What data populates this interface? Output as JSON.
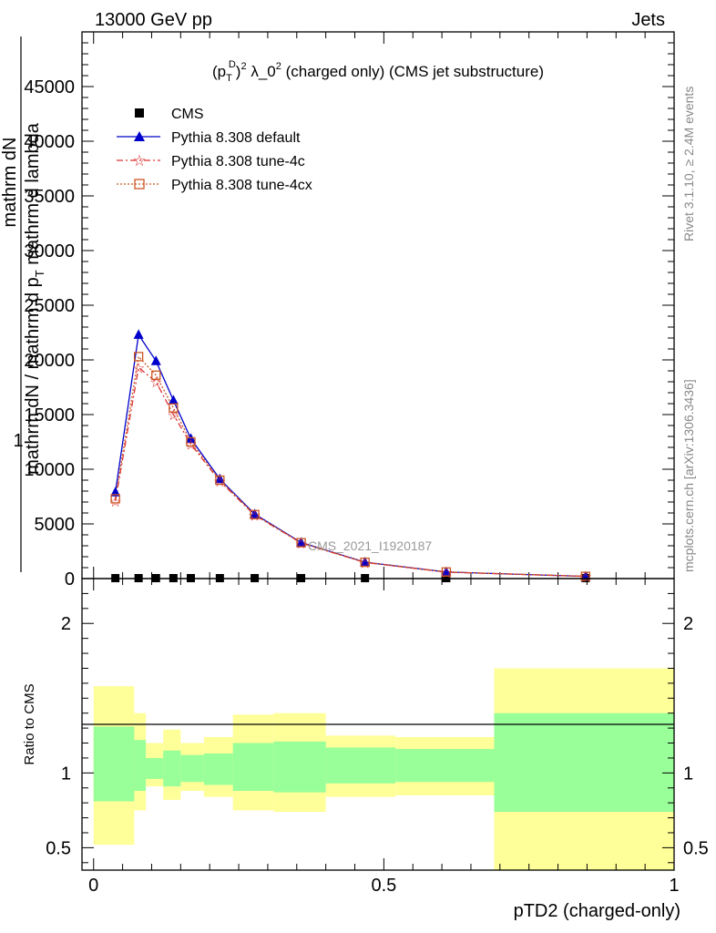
{
  "header": {
    "left": "13000 GeV pp",
    "right": "Jets"
  },
  "side_labels": {
    "rivet": "Rivet 3.1.10, ≥ 2.4M events",
    "mcplots": "mcplots.cern.ch [arXiv:1306.3436]"
  },
  "watermark": "CMS_2021_I1920187",
  "chart_data": [
    {
      "type": "line",
      "title": {
        "prefix": "(p",
        "sub_T": "T",
        "sup_D": "D",
        "sup_2": "2",
        "mid": " λ_0",
        "sup_2b": "2",
        "rest": " (charged only) (CMS jet substructure)"
      },
      "ylabel": {
        "one": "1",
        "num": "mathrm dN",
        "den_main": "mathrm dN / mathrm d p",
        "den_sub": "T",
        "den_rest": " mathrm d lambda"
      },
      "ylim": [
        0,
        50000
      ],
      "yticks": [
        0,
        5000,
        10000,
        15000,
        20000,
        25000,
        30000,
        35000,
        40000,
        45000
      ],
      "ytick_labels": [
        "0",
        "5000",
        "10000",
        "15000",
        "20000",
        "25000",
        "30000",
        "35000",
        "40000",
        "45000"
      ],
      "xlim": [
        -0.02,
        1.0
      ],
      "x": [
        0.0375,
        0.0775,
        0.1075,
        0.1375,
        0.1675,
        0.2175,
        0.2775,
        0.3575,
        0.4675,
        0.6075,
        0.8475
      ],
      "legend_position": "top-left",
      "series": [
        {
          "name": "CMS",
          "color": "#000000",
          "marker": "square",
          "values": [
            40,
            40,
            40,
            40,
            40,
            40,
            40,
            40,
            40,
            40,
            40
          ]
        },
        {
          "name": "Pythia 8.308 default",
          "color": "#0000cc",
          "marker": "triangle",
          "dash": "",
          "values": [
            7900,
            22300,
            19900,
            16300,
            12800,
            9100,
            5900,
            3300,
            1500,
            600,
            200
          ]
        },
        {
          "name": "Pythia 8.308 tune-4c",
          "color": "#dd3333",
          "marker": "star",
          "dash": "7,3,2,3",
          "values": [
            7100,
            19300,
            18000,
            15000,
            12300,
            8900,
            5800,
            3250,
            1470,
            590,
            200
          ]
        },
        {
          "name": "Pythia 8.308 tune-4cx",
          "color": "#cc5522",
          "marker": "open-square",
          "dash": "2,2",
          "values": [
            7300,
            20300,
            18600,
            15600,
            12500,
            9000,
            5850,
            3280,
            1490,
            600,
            200
          ]
        }
      ]
    },
    {
      "type": "area",
      "ylabel": "Ratio to CMS",
      "ylim": [
        0.35,
        2.3
      ],
      "yticks": [
        0.5,
        1,
        2
      ],
      "ytick_labels": [
        "0.5",
        "1",
        "2"
      ],
      "xlim": [
        -0.02,
        1.0
      ],
      "xticks": [
        0,
        0.5,
        1
      ],
      "xtick_labels": [
        "0",
        "0.5",
        "1"
      ],
      "xlabel": "pTD2 (charged-only)",
      "band_colors": {
        "outer": "#ffff99",
        "inner": "#99ff99",
        "line": "#000000"
      },
      "bins": [
        {
          "lo": 0.0,
          "hi": 0.07,
          "outer": [
            0.52,
            1.58
          ],
          "inner": [
            0.81,
            1.31
          ]
        },
        {
          "lo": 0.07,
          "hi": 0.09,
          "outer": [
            0.75,
            1.4
          ],
          "inner": [
            0.88,
            1.22
          ]
        },
        {
          "lo": 0.09,
          "hi": 0.12,
          "outer": [
            0.91,
            1.2
          ],
          "inner": [
            0.96,
            1.1
          ]
        },
        {
          "lo": 0.12,
          "hi": 0.15,
          "outer": [
            0.82,
            1.29
          ],
          "inner": [
            0.91,
            1.15
          ]
        },
        {
          "lo": 0.15,
          "hi": 0.19,
          "outer": [
            0.88,
            1.2
          ],
          "inner": [
            0.94,
            1.12
          ]
        },
        {
          "lo": 0.19,
          "hi": 0.24,
          "outer": [
            0.84,
            1.24
          ],
          "inner": [
            0.92,
            1.13
          ]
        },
        {
          "lo": 0.24,
          "hi": 0.31,
          "outer": [
            0.75,
            1.39
          ],
          "inner": [
            0.88,
            1.2
          ]
        },
        {
          "lo": 0.31,
          "hi": 0.4,
          "outer": [
            0.74,
            1.4
          ],
          "inner": [
            0.87,
            1.21
          ]
        },
        {
          "lo": 0.4,
          "hi": 0.52,
          "outer": [
            0.84,
            1.25
          ],
          "inner": [
            0.93,
            1.17
          ]
        },
        {
          "lo": 0.52,
          "hi": 0.69,
          "outer": [
            0.85,
            1.24
          ],
          "inner": [
            0.94,
            1.16
          ]
        },
        {
          "lo": 0.69,
          "hi": 1.0,
          "outer": [
            0.35,
            1.7
          ],
          "inner": [
            0.74,
            1.4
          ]
        }
      ]
    }
  ]
}
